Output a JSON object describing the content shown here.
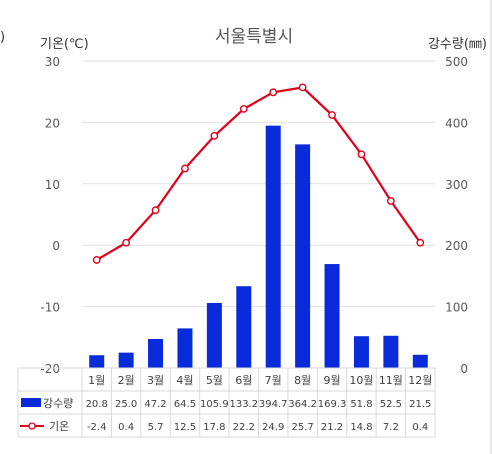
{
  "chart_data": {
    "type": "bar+line",
    "title": "서울특별시",
    "ylabel_left": "기온(℃)",
    "ylabel_right": "강수량(㎜)",
    "ylim_left": [
      -20,
      30
    ],
    "ylim_right": [
      0,
      500
    ],
    "yticks_left": [
      "30",
      "20",
      "10",
      "0",
      "-10",
      "-20"
    ],
    "yticks_right": [
      "500",
      "400",
      "300",
      "200",
      "100",
      "0"
    ],
    "categories": [
      "1월",
      "2월",
      "3월",
      "4월",
      "5월",
      "6월",
      "7월",
      "8월",
      "9월",
      "10월",
      "11월",
      "12월"
    ],
    "series": [
      {
        "name": "강수량",
        "type": "bar",
        "axis": "right",
        "color": "#0a2bdc",
        "values": [
          20.8,
          25.0,
          47.2,
          64.5,
          105.9,
          133.2,
          394.7,
          364.2,
          169.3,
          51.8,
          52.5,
          21.5
        ],
        "labels": [
          "20.8",
          "25.0",
          "47.2",
          "64.5",
          "105.9",
          "133.2",
          "394.7",
          "364.2",
          "169.3",
          "51.8",
          "52.5",
          "21.5"
        ]
      },
      {
        "name": "기온",
        "type": "line",
        "axis": "left",
        "color": "#e0001a",
        "values": [
          -2.4,
          0.4,
          5.7,
          12.5,
          17.8,
          22.2,
          24.9,
          25.7,
          21.2,
          14.8,
          7.2,
          0.4
        ],
        "labels": [
          "-2.4",
          "0.4",
          "5.7",
          "12.5",
          "17.8",
          "22.2",
          "24.9",
          "25.7",
          "21.2",
          "14.8",
          "7.2",
          "0.4"
        ]
      }
    ],
    "grid": true,
    "legend": "data-table-bottom"
  },
  "edge_mark": ")"
}
